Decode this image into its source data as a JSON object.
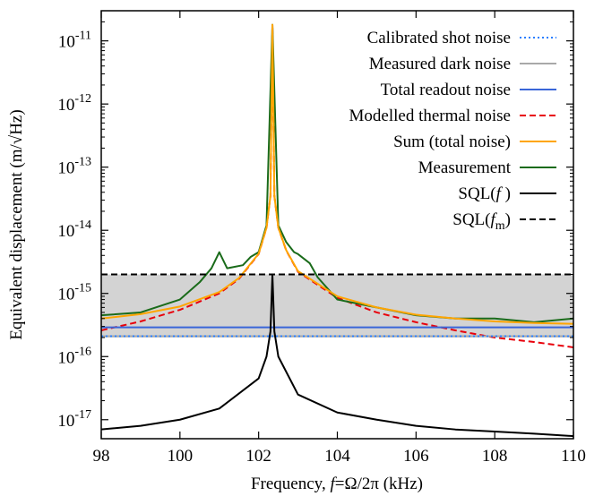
{
  "chart_data": {
    "type": "line",
    "xlabel": "Frequency, f=Ω/2π (kHz)",
    "ylabel": "Equivalent displacement (m/√Hz)",
    "x_scale": "linear",
    "y_scale": "log",
    "xlim": [
      98,
      110
    ],
    "ylim": [
      5e-18,
      3e-11
    ],
    "x_ticks": [
      98,
      100,
      102,
      104,
      106,
      108,
      110
    ],
    "x_tick_labels": [
      "98",
      "100",
      "102",
      "104",
      "106",
      "108",
      "110"
    ],
    "y_ticks": [
      {
        "exp": "-17",
        "value": 1e-17
      },
      {
        "exp": "-16",
        "value": 1e-16
      },
      {
        "exp": "-15",
        "value": 1e-15
      },
      {
        "exp": "-14",
        "value": 1e-14
      },
      {
        "exp": "-13",
        "value": 1e-13
      },
      {
        "exp": "-12",
        "value": 1e-12
      },
      {
        "exp": "-11",
        "value": 1e-11
      }
    ],
    "y_tick_base": "10",
    "legend_position": "top-right",
    "grid": false,
    "shaded_region": {
      "y_from": 2e-16,
      "y_to": 2e-15,
      "color": "#d3d3d3"
    },
    "resonance_frequency_khz": 102.35,
    "series": [
      {
        "name": "Calibrated shot noise",
        "color": "#2a7fff",
        "style": "dotted",
        "x": [
          98,
          110
        ],
        "y": [
          2.1e-16,
          2.1e-16
        ]
      },
      {
        "name": "Measured dark noise",
        "color": "#a9a9a9",
        "style": "solid",
        "x": [
          98,
          110
        ],
        "y": [
          2.1e-16,
          2.1e-16
        ]
      },
      {
        "name": "Total readout noise",
        "color": "#3a66d8",
        "style": "solid",
        "x": [
          98,
          110
        ],
        "y": [
          2.9e-16,
          2.9e-16
        ]
      },
      {
        "name": "Modelled thermal noise",
        "color": "#e8000b",
        "style": "dashed",
        "x": [
          98,
          99,
          100,
          101,
          101.5,
          102,
          102.2,
          102.3,
          102.35,
          102.4,
          102.5,
          102.7,
          103,
          104,
          105,
          106,
          107,
          108,
          109,
          110
        ],
        "y": [
          2.6e-16,
          3.6e-16,
          5.5e-16,
          1e-15,
          1.7e-15,
          4.2e-15,
          1.1e-14,
          3.5e-14,
          1.8e-11,
          3.5e-14,
          1.1e-14,
          4.8e-15,
          2.2e-15,
          8.5e-16,
          5e-16,
          3.5e-16,
          2.6e-16,
          2e-16,
          1.7e-16,
          1.4e-16
        ]
      },
      {
        "name": "Sum (total noise)",
        "color": "#ffa500",
        "style": "solid",
        "x": [
          98,
          99,
          100,
          101,
          101.5,
          102,
          102.2,
          102.3,
          102.35,
          102.4,
          102.5,
          102.7,
          103,
          104,
          105,
          106,
          107,
          108,
          109,
          110
        ],
        "y": [
          4e-16,
          4.7e-16,
          6.2e-16,
          1.05e-15,
          1.75e-15,
          4.25e-15,
          1.1e-14,
          3.5e-14,
          1.8e-11,
          3.5e-14,
          1.1e-14,
          4.85e-15,
          2.25e-15,
          9e-16,
          6e-16,
          4.6e-16,
          4e-16,
          3.6e-16,
          3.4e-16,
          3.3e-16
        ]
      },
      {
        "name": "Measurement",
        "color": "#1a6b1a",
        "style": "solid",
        "x": [
          98,
          99,
          100,
          100.5,
          100.8,
          101,
          101.2,
          101.6,
          101.8,
          102,
          102.2,
          102.35,
          102.5,
          102.7,
          102.9,
          103,
          103.3,
          103.5,
          104,
          105,
          106,
          107,
          108,
          109,
          110
        ],
        "y": [
          4.5e-16,
          5e-16,
          8e-16,
          1.5e-15,
          2.5e-15,
          4.5e-15,
          2.5e-15,
          2.8e-15,
          3.8e-15,
          4.5e-15,
          1.2e-14,
          1.8e-11,
          1.2e-14,
          6.5e-15,
          4.5e-15,
          4.2e-15,
          3e-15,
          1.8e-15,
          8e-16,
          6e-16,
          4.5e-16,
          4e-16,
          4e-16,
          3.5e-16,
          4e-16
        ]
      },
      {
        "name": "SQL(f)",
        "color": "#000000",
        "style": "solid",
        "x": [
          98,
          99,
          100,
          101,
          102,
          102.2,
          102.3,
          102.35,
          102.4,
          102.5,
          103,
          104,
          105,
          106,
          107,
          108,
          109,
          110
        ],
        "y": [
          7e-18,
          8e-18,
          1e-17,
          1.5e-17,
          4.5e-17,
          1e-16,
          2.5e-16,
          2e-15,
          2.5e-16,
          1e-16,
          2.5e-17,
          1.3e-17,
          1e-17,
          8e-18,
          7e-18,
          6.5e-18,
          6e-18,
          5.5e-18
        ]
      },
      {
        "name": "SQL(f_m)",
        "color": "#000000",
        "style": "dashed",
        "x": [
          98,
          110
        ],
        "y": [
          2e-15,
          2e-15
        ]
      }
    ]
  }
}
